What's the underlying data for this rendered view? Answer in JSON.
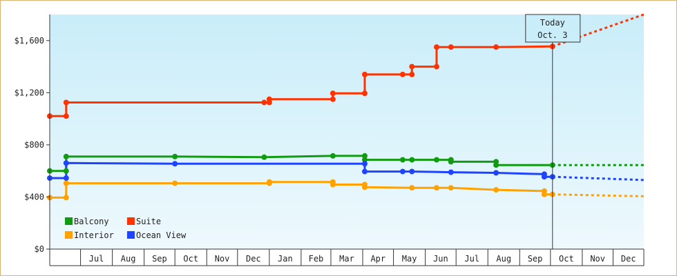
{
  "chart_data": {
    "type": "line",
    "title": "",
    "xlabel": "",
    "ylabel": "",
    "x_range": [
      "2023-06-01",
      "2024-12-31"
    ],
    "ylim": [
      0,
      1800
    ],
    "y_ticks": [
      0,
      400,
      800,
      1200,
      1600
    ],
    "y_tick_labels": [
      "$0",
      "$400",
      "$800",
      "$1,200",
      "$1,600"
    ],
    "x_tick_labels": [
      "Jul",
      "Aug",
      "Sep",
      "Oct",
      "Nov",
      "Dec",
      "Jan",
      "Feb",
      "Mar",
      "Apr",
      "May",
      "Jun",
      "Jul",
      "Aug",
      "Sep",
      "Oct",
      "Nov",
      "Dec"
    ],
    "grid": false,
    "today": {
      "date": "2024-10-03",
      "line1": "Today",
      "line2": "Oct. 3"
    },
    "legend_position": "bottom-left",
    "series": [
      {
        "name": "Balcony",
        "color": "#129b12",
        "points": [
          [
            "2023-06-01",
            600
          ],
          [
            "2023-06-17",
            600
          ],
          [
            "2023-06-17",
            710
          ],
          [
            "2023-10-01",
            710
          ],
          [
            "2023-12-27",
            705
          ],
          [
            "2024-03-03",
            715
          ],
          [
            "2024-04-03",
            715
          ],
          [
            "2024-04-03",
            685
          ],
          [
            "2024-05-10",
            685
          ],
          [
            "2024-05-19",
            685
          ],
          [
            "2024-06-12",
            685
          ],
          [
            "2024-06-26",
            685
          ],
          [
            "2024-06-26",
            670
          ],
          [
            "2024-08-09",
            670
          ],
          [
            "2024-08-09",
            645
          ],
          [
            "2024-10-03",
            645
          ]
        ],
        "forecast": [
          [
            "2024-10-03",
            645
          ],
          [
            "2024-12-31",
            645
          ]
        ]
      },
      {
        "name": "Suite",
        "color": "#ff3300",
        "points": [
          [
            "2023-06-01",
            1020
          ],
          [
            "2023-06-17",
            1020
          ],
          [
            "2023-06-17",
            1125
          ],
          [
            "2023-12-27",
            1125
          ],
          [
            "2024-01-01",
            1125
          ],
          [
            "2024-01-01",
            1150
          ],
          [
            "2024-03-03",
            1150
          ],
          [
            "2024-03-03",
            1195
          ],
          [
            "2024-04-03",
            1195
          ],
          [
            "2024-04-03",
            1340
          ],
          [
            "2024-05-10",
            1340
          ],
          [
            "2024-05-19",
            1340
          ],
          [
            "2024-05-19",
            1400
          ],
          [
            "2024-06-12",
            1400
          ],
          [
            "2024-06-12",
            1550
          ],
          [
            "2024-06-26",
            1550
          ],
          [
            "2024-08-09",
            1550
          ],
          [
            "2024-10-03",
            1555
          ]
        ],
        "forecast": [
          [
            "2024-10-03",
            1555
          ],
          [
            "2024-12-31",
            1800
          ]
        ]
      },
      {
        "name": "Interior",
        "color": "#ffa200",
        "points": [
          [
            "2023-06-01",
            395
          ],
          [
            "2023-06-17",
            395
          ],
          [
            "2023-06-17",
            505
          ],
          [
            "2023-10-01",
            505
          ],
          [
            "2024-01-01",
            505
          ],
          [
            "2024-01-01",
            515
          ],
          [
            "2024-03-03",
            515
          ],
          [
            "2024-03-03",
            495
          ],
          [
            "2024-04-03",
            495
          ],
          [
            "2024-04-03",
            475
          ],
          [
            "2024-05-19",
            470
          ],
          [
            "2024-06-12",
            470
          ],
          [
            "2024-06-26",
            470
          ],
          [
            "2024-08-09",
            455
          ],
          [
            "2024-09-25",
            445
          ],
          [
            "2024-09-25",
            420
          ],
          [
            "2024-10-03",
            420
          ]
        ],
        "forecast": [
          [
            "2024-10-03",
            420
          ],
          [
            "2024-12-31",
            405
          ]
        ]
      },
      {
        "name": "Ocean View",
        "color": "#1f44ff",
        "points": [
          [
            "2023-06-01",
            545
          ],
          [
            "2023-06-17",
            545
          ],
          [
            "2023-06-17",
            660
          ],
          [
            "2023-10-01",
            655
          ],
          [
            "2024-04-03",
            655
          ],
          [
            "2024-04-03",
            595
          ],
          [
            "2024-05-10",
            595
          ],
          [
            "2024-05-19",
            595
          ],
          [
            "2024-06-26",
            590
          ],
          [
            "2024-08-09",
            585
          ],
          [
            "2024-09-25",
            575
          ],
          [
            "2024-09-25",
            555
          ],
          [
            "2024-10-03",
            555
          ]
        ],
        "forecast": [
          [
            "2024-10-03",
            555
          ],
          [
            "2024-12-31",
            530
          ]
        ]
      }
    ]
  }
}
